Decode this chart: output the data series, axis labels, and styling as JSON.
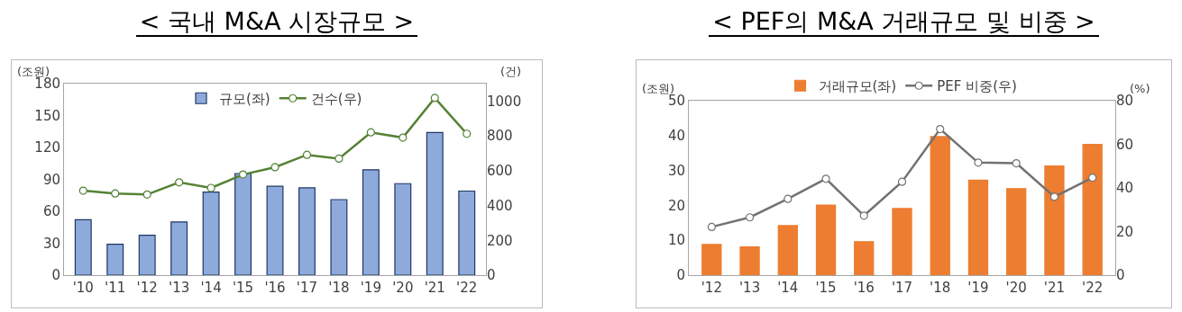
{
  "chart_data": [
    {
      "type": "bar",
      "title": "< 국내 M&A 시장규모 >",
      "ylabel": "(조원)",
      "y2label": "(건)",
      "categories": [
        "'10",
        "'11",
        "'12",
        "'13",
        "'14",
        "'15",
        "'16",
        "'17",
        "'18",
        "'19",
        "'20",
        "'21",
        "'22"
      ],
      "series": [
        {
          "name": "규모(좌)",
          "type": "bar",
          "color": "#8eaadb",
          "values": [
            52,
            29,
            37.5,
            50,
            78,
            95.5,
            83.5,
            82,
            71,
            99,
            86,
            134,
            79
          ]
        },
        {
          "name": "건수(우)",
          "type": "line",
          "axis": "y2",
          "color": "#548235",
          "marker": "circle",
          "values": [
            485,
            469,
            463,
            533,
            501,
            578,
            620,
            691,
            669,
            820,
            790,
            1018,
            812
          ]
        }
      ],
      "ylim": [
        0,
        180
      ],
      "yticks": [
        0,
        30,
        60,
        90,
        120,
        150,
        180
      ],
      "y2lim": [
        0,
        1100
      ],
      "y2ticks": [
        0,
        200,
        400,
        600,
        800,
        1000
      ],
      "grid": false,
      "legend": "top"
    },
    {
      "type": "bar",
      "title": "< PEF의 M&A 거래규모 및 비중 >",
      "ylabel": "(조원)",
      "y2label": "(%)",
      "categories": [
        "'12",
        "'13",
        "'14",
        "'15",
        "'16",
        "'17",
        "'18",
        "'19",
        "'20",
        "'21",
        "'22"
      ],
      "series": [
        {
          "name": "거래규모(좌)",
          "type": "bar",
          "color": "#ed7d31",
          "values": [
            8.8,
            8.1,
            14.2,
            20.1,
            9.6,
            19.1,
            39.7,
            27.2,
            24.8,
            31.3,
            37.5
          ]
        },
        {
          "name": "PEF 비중(우)",
          "type": "line",
          "axis": "y2",
          "color": "#767171",
          "marker": "circle",
          "values": [
            22.1,
            26.5,
            35,
            44.2,
            27.3,
            42.8,
            67,
            51.6,
            51.3,
            35.9,
            44.7
          ]
        }
      ],
      "ylim": [
        0,
        50
      ],
      "yticks": [
        0,
        10,
        20,
        30,
        40,
        50
      ],
      "y2lim": [
        0,
        80
      ],
      "y2ticks": [
        0,
        20,
        40,
        60,
        80
      ],
      "grid": false,
      "legend": "top"
    }
  ]
}
